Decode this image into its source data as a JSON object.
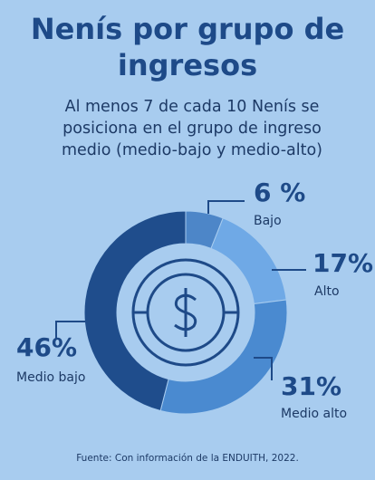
{
  "chart_data": {
    "type": "donut",
    "title": "Nenís por grupo de ingresos",
    "subtitle": "Al menos 7 de cada 10 Nenís se posiciona en el grupo de ingreso medio (medio-bajo y medio-alto)",
    "categories": [
      "Bajo",
      "Alto",
      "Medio alto",
      "Medio bajo"
    ],
    "values": [
      6,
      17,
      31,
      46
    ],
    "value_labels": [
      "6 %",
      "17%",
      "31%",
      "46%"
    ],
    "colors": [
      "#4d86c8",
      "#6fa9e6",
      "#4a8ad0",
      "#1f4d8c"
    ],
    "source": "Fuente: Con información de la ENDUITH, 2022."
  }
}
